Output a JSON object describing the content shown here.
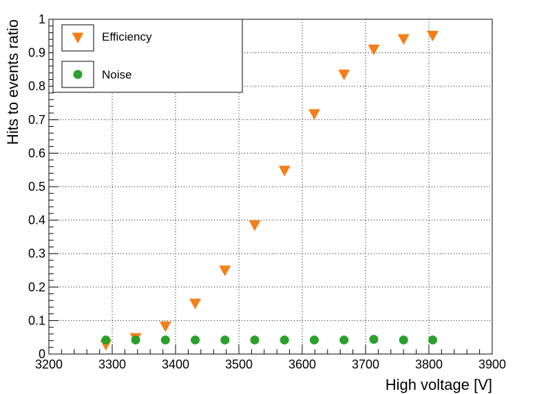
{
  "chart_data": {
    "type": "scatter",
    "title": "",
    "xlabel": "High voltage [V]",
    "ylabel": "Hits to events ratio",
    "xlim": [
      3200,
      3900
    ],
    "ylim": [
      0,
      1
    ],
    "x_ticks": [
      3200,
      3300,
      3400,
      3500,
      3600,
      3700,
      3800,
      3900
    ],
    "y_ticks": [
      0,
      0.1,
      0.2,
      0.3,
      0.4,
      0.5,
      0.6,
      0.7,
      0.8,
      0.9,
      1
    ],
    "grid": true,
    "legend_position": "top-left",
    "series": [
      {
        "name": "Efficiency",
        "marker": "triangle-down",
        "color": "#f57f17",
        "x": [
          3290,
          3337,
          3384,
          3431,
          3478,
          3525,
          3572,
          3619,
          3666,
          3713,
          3760,
          3806
        ],
        "y": [
          0.027,
          0.047,
          0.082,
          0.15,
          0.249,
          0.384,
          0.547,
          0.716,
          0.834,
          0.909,
          0.94,
          0.95
        ]
      },
      {
        "name": "Noise",
        "marker": "circle",
        "color": "#2ca02c",
        "x": [
          3290,
          3337,
          3384,
          3431,
          3478,
          3525,
          3572,
          3619,
          3666,
          3713,
          3760,
          3806
        ],
        "y": [
          0.042,
          0.042,
          0.042,
          0.042,
          0.042,
          0.042,
          0.042,
          0.042,
          0.042,
          0.044,
          0.042,
          0.042
        ]
      }
    ]
  }
}
